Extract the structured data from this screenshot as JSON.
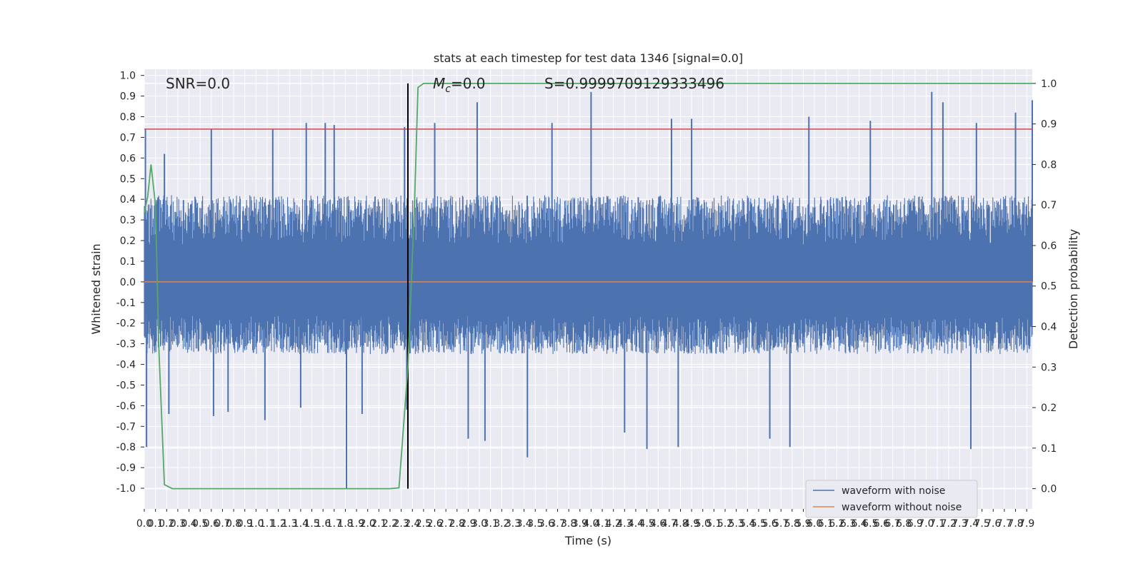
{
  "chart_data": {
    "type": "line",
    "title": "stats at each timestep for test data 1346 [signal=0.0]",
    "xlabel": "Time (s)",
    "ylabel": "Whitened strain",
    "y2label": "Detection probability",
    "xlim": [
      0.0,
      7.95
    ],
    "ylim": [
      -1.1,
      1.03
    ],
    "y2lim": [
      -0.05,
      1.035
    ],
    "xticks": [
      0.0,
      0.1,
      0.2,
      0.3,
      0.4,
      0.5,
      0.6,
      0.7,
      0.8,
      0.9,
      1.0,
      1.1,
      1.2,
      1.3,
      1.4,
      1.5,
      1.6,
      1.7,
      1.8,
      1.9,
      2.0,
      2.1,
      2.2,
      2.3,
      2.4,
      2.5,
      2.6,
      2.7,
      2.8,
      2.9,
      3.0,
      3.1,
      3.2,
      3.3,
      3.4,
      3.5,
      3.6,
      3.7,
      3.8,
      3.9,
      4.0,
      4.1,
      4.2,
      4.3,
      4.4,
      4.5,
      4.6,
      4.7,
      4.8,
      4.9,
      5.0,
      5.1,
      5.2,
      5.3,
      5.4,
      5.5,
      5.6,
      5.7,
      5.8,
      5.9,
      6.0,
      6.1,
      6.2,
      6.3,
      6.4,
      6.5,
      6.6,
      6.7,
      6.8,
      6.9,
      7.0,
      7.1,
      7.2,
      7.3,
      7.4,
      7.5,
      7.6,
      7.7,
      7.8,
      7.9
    ],
    "yticks": [
      1.0,
      0.9,
      0.8,
      0.7,
      0.6,
      0.5,
      0.4,
      0.3,
      0.2,
      0.1,
      0.0,
      -0.1,
      -0.2,
      -0.3,
      -0.4,
      -0.5,
      -0.6,
      -0.7,
      -0.8,
      -0.9,
      -1.0
    ],
    "y2ticks": [
      1.0,
      0.9,
      0.8,
      0.7,
      0.6,
      0.5,
      0.4,
      0.3,
      0.2,
      0.1,
      0.0
    ],
    "annotations": [
      "SNR=0.0",
      "M_c=0.0",
      "S=0.9999709129333496"
    ],
    "threshold_line": {
      "y": 0.74,
      "color": "#c44e52"
    },
    "marker_time": 2.36,
    "grid": true,
    "legend_position": "lower-right",
    "series": [
      {
        "name": "waveform with noise",
        "color": "#4c72b0",
        "kind": "noise",
        "envelope_typical": [
          -0.35,
          0.42
        ],
        "spikes": [
          {
            "x": 0.01,
            "y": 0.74
          },
          {
            "x": 0.02,
            "y": -0.8
          },
          {
            "x": 0.18,
            "y": 0.62
          },
          {
            "x": 0.22,
            "y": -0.64
          },
          {
            "x": 0.6,
            "y": 0.74
          },
          {
            "x": 0.62,
            "y": -0.65
          },
          {
            "x": 0.75,
            "y": -0.63
          },
          {
            "x": 1.08,
            "y": -0.67
          },
          {
            "x": 1.15,
            "y": 0.74
          },
          {
            "x": 1.4,
            "y": -0.61
          },
          {
            "x": 1.45,
            "y": 0.77
          },
          {
            "x": 1.62,
            "y": 0.77
          },
          {
            "x": 1.7,
            "y": 0.76
          },
          {
            "x": 1.81,
            "y": -1.0
          },
          {
            "x": 1.95,
            "y": -0.64
          },
          {
            "x": 2.33,
            "y": 0.75
          },
          {
            "x": 2.35,
            "y": -0.62
          },
          {
            "x": 2.6,
            "y": 0.77
          },
          {
            "x": 2.9,
            "y": -0.76
          },
          {
            "x": 2.98,
            "y": 0.87
          },
          {
            "x": 3.05,
            "y": -0.77
          },
          {
            "x": 3.43,
            "y": -0.85
          },
          {
            "x": 3.65,
            "y": 0.77
          },
          {
            "x": 4.0,
            "y": 0.92
          },
          {
            "x": 4.3,
            "y": -0.73
          },
          {
            "x": 4.5,
            "y": -0.81
          },
          {
            "x": 4.72,
            "y": 0.79
          },
          {
            "x": 4.78,
            "y": -0.8
          },
          {
            "x": 4.9,
            "y": 0.79
          },
          {
            "x": 5.6,
            "y": -0.76
          },
          {
            "x": 5.78,
            "y": -0.8
          },
          {
            "x": 5.95,
            "y": 0.8
          },
          {
            "x": 6.5,
            "y": 0.78
          },
          {
            "x": 7.05,
            "y": 0.92
          },
          {
            "x": 7.15,
            "y": 0.87
          },
          {
            "x": 7.4,
            "y": -0.81
          },
          {
            "x": 7.45,
            "y": 0.77
          },
          {
            "x": 7.8,
            "y": 0.82
          },
          {
            "x": 7.95,
            "y": 0.88
          }
        ]
      },
      {
        "name": "waveform without noise",
        "color": "#dd8452",
        "kind": "flat",
        "y": 0.0
      },
      {
        "name": "",
        "color": "#55a868",
        "axis": "y2",
        "x": [
          0.0,
          0.03,
          0.06,
          0.1,
          0.13,
          0.18,
          0.25,
          0.5,
          1.0,
          1.5,
          2.0,
          2.2,
          2.28,
          2.36,
          2.42,
          2.45,
          2.5,
          3.0,
          4.0,
          5.0,
          6.0,
          7.0,
          7.95
        ],
        "values": [
          0.68,
          0.72,
          0.8,
          0.7,
          0.35,
          0.01,
          0.0,
          0.0,
          0.0,
          0.0,
          0.0,
          0.0,
          0.002,
          0.3,
          0.71,
          0.99,
          1.0,
          1.0,
          1.0,
          1.0,
          1.0,
          1.0,
          1.0
        ]
      }
    ]
  }
}
